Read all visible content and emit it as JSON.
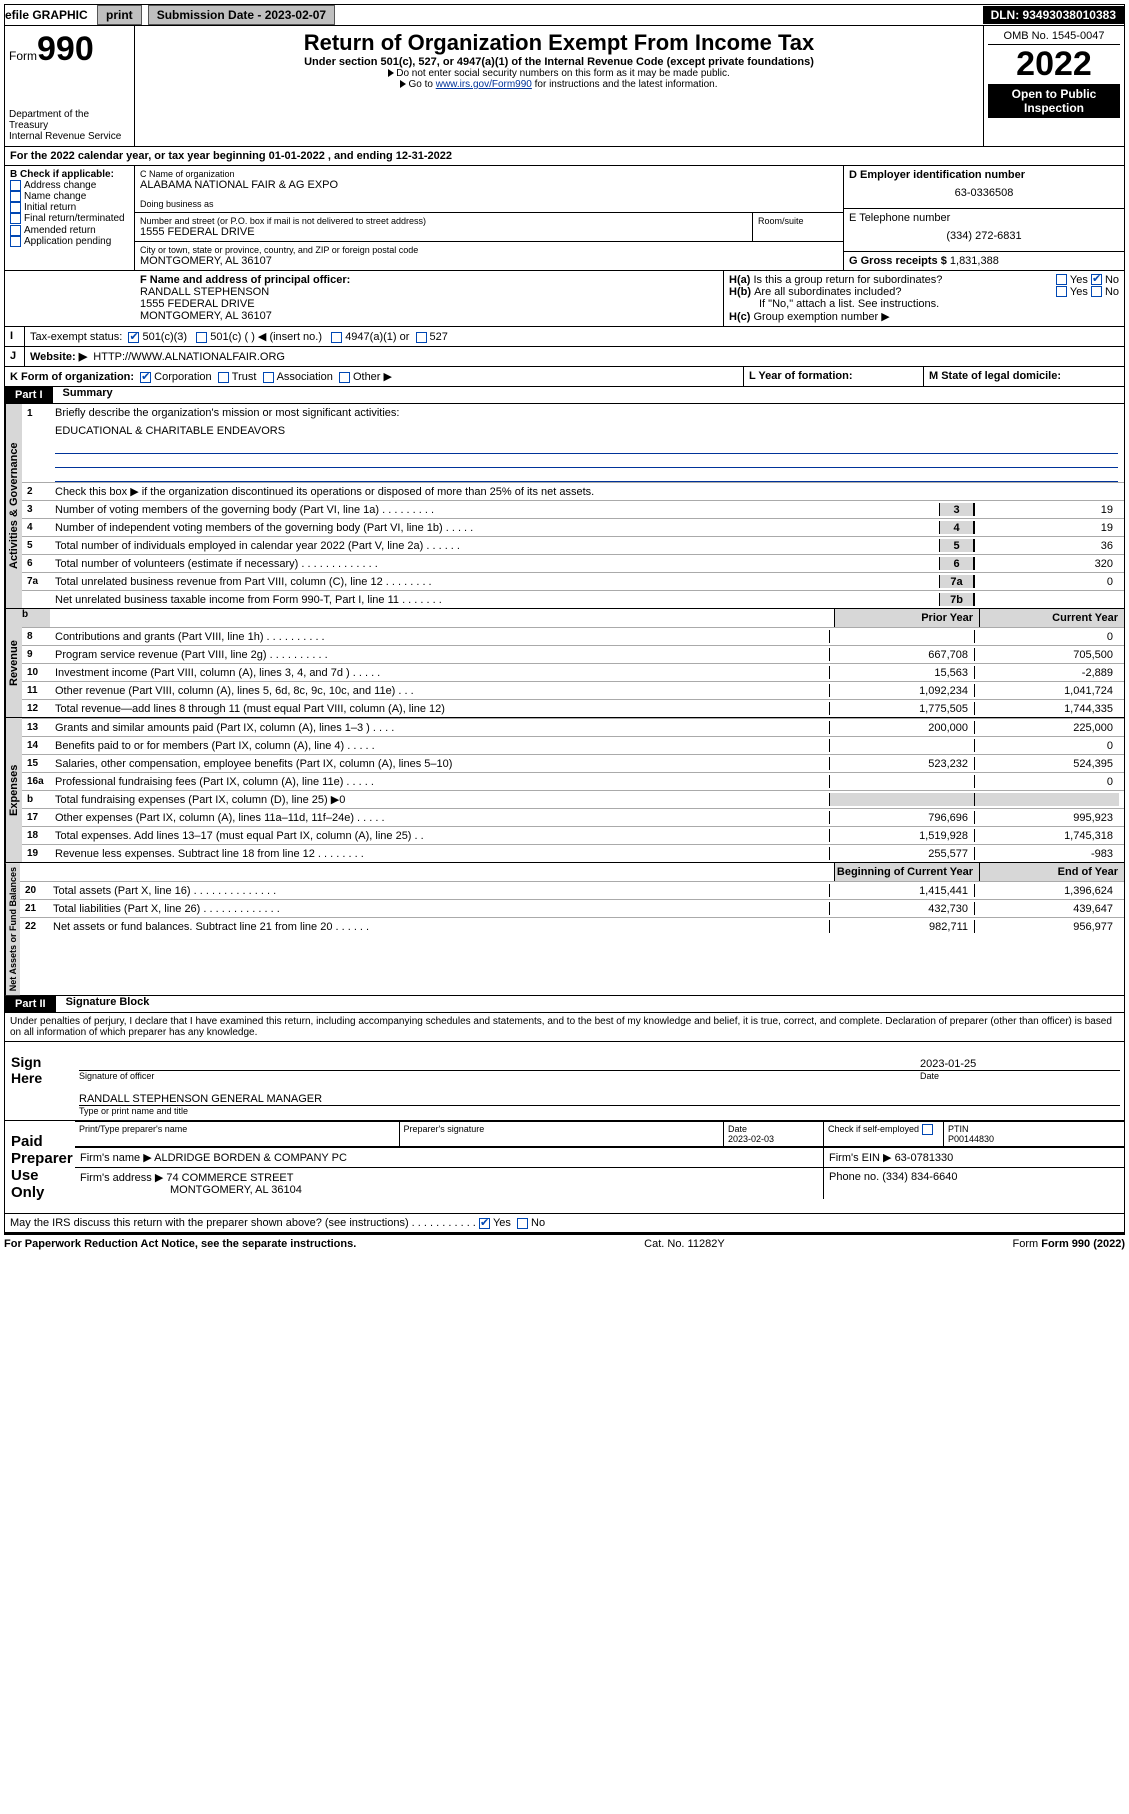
{
  "topbar": {
    "efile_label": "efile GRAPHIC ",
    "print_btn": "print",
    "sub_label": "Submission Date - 2023-02-07",
    "dln": "DLN: 93493038010383"
  },
  "header": {
    "form_prefix": "Form",
    "form_num": "990",
    "dept": "Department of the Treasury\nInternal Revenue Service",
    "title": "Return of Organization Exempt From Income Tax",
    "subtitle": "Under section 501(c), 527, or 4947(a)(1) of the Internal Revenue Code (except private foundations)",
    "note1": "Do not enter social security numbers on this form as it may be made public.",
    "note2_pre": "Go to ",
    "note2_link": "www.irs.gov/Form990",
    "note2_post": " for instructions and the latest information.",
    "omb": "OMB No. 1545-0047",
    "year": "2022",
    "otp": "Open to Public Inspection"
  },
  "period": {
    "line_a": "For the 2022 calendar year, or tax year beginning 01-01-2022    , and ending 12-31-2022"
  },
  "box_b": {
    "label": "B Check if applicable:",
    "items": [
      "Address change",
      "Name change",
      "Initial return",
      "Final return/terminated",
      "Amended return",
      "Application pending"
    ]
  },
  "box_c": {
    "name_label": "C Name of organization",
    "org_name": "ALABAMA NATIONAL FAIR & AG EXPO",
    "dba_label": "Doing business as",
    "street_label": "Number and street (or P.O. box if mail is not delivered to street address)",
    "room_label": "Room/suite",
    "street": "1555 FEDERAL DRIVE",
    "city_label": "City or town, state or province, country, and ZIP or foreign postal code",
    "city": "MONTGOMERY, AL  36107"
  },
  "box_d": {
    "label": "D Employer identification number",
    "value": "63-0336508"
  },
  "box_e": {
    "label": "E Telephone number",
    "value": "(334) 272-6831"
  },
  "box_g": {
    "label": "G Gross receipts $",
    "value": "1,831,388"
  },
  "box_f": {
    "label": "F  Name and address of principal officer:",
    "name": "RANDALL STEPHENSON",
    "street": "1555 FEDERAL DRIVE",
    "city": "MONTGOMERY, AL  36107"
  },
  "box_h": {
    "ha": "Is this a group return for subordinates?",
    "hb": "Are all subordinates included?",
    "hb_note": "If \"No,\" attach a list. See instructions.",
    "hc": "Group exemption number ▶",
    "yes": "Yes",
    "no": "No"
  },
  "box_i": {
    "label": "Tax-exempt status:",
    "o1": "501(c)(3)",
    "o2": "501(c) (   ) ◀ (insert no.)",
    "o3": "4947(a)(1) or",
    "o4": "527"
  },
  "box_j": {
    "label": "Website: ▶",
    "value": "HTTP://WWW.ALNATIONALFAIR.ORG"
  },
  "box_k": {
    "label": "K Form of organization:",
    "o1": "Corporation",
    "o2": "Trust",
    "o3": "Association",
    "o4": "Other ▶"
  },
  "box_l": {
    "label": "L Year of formation:"
  },
  "box_m": {
    "label": "M State of legal domicile:"
  },
  "part1": {
    "header": "Part I",
    "title": "Summary",
    "l1": "Briefly describe the organization's mission or most significant activities:",
    "l1_text": "EDUCATIONAL & CHARITABLE ENDEAVORS",
    "l2": "Check this box ▶       if the organization discontinued its operations or disposed of more than 25% of its net assets.",
    "section_act": "Activities & Governance",
    "section_rev": "Revenue",
    "section_exp": "Expenses",
    "section_net": "Net Assets or Fund Balances",
    "lines_single": [
      {
        "n": "3",
        "d": "Number of voting members of the governing body (Part VI, line 1a)  .   .   .   .   .   .   .   .   .",
        "b": "3",
        "v": "19"
      },
      {
        "n": "4",
        "d": "Number of independent voting members of the governing body (Part VI, line 1b)  .   .   .   .   .",
        "b": "4",
        "v": "19"
      },
      {
        "n": "5",
        "d": "Total number of individuals employed in calendar year 2022 (Part V, line 2a)  .   .   .   .   .   .",
        "b": "5",
        "v": "36"
      },
      {
        "n": "6",
        "d": "Total number of volunteers (estimate if necessary)  .   .   .   .   .   .   .   .   .   .   .   .   .",
        "b": "6",
        "v": "320"
      },
      {
        "n": "7a",
        "d": "Total unrelated business revenue from Part VIII, column (C), line 12  .   .   .   .   .   .   .   .",
        "b": "7a",
        "v": "0"
      },
      {
        "n": "",
        "d": "Net unrelated business taxable income from Form 990-T, Part I, line 11  .   .   .   .   .   .   .",
        "b": "7b",
        "v": ""
      }
    ],
    "col_prior": "Prior Year",
    "col_curr": "Current Year",
    "col_beg": "Beginning of Current Year",
    "col_end": "End of Year",
    "lines_rev": [
      {
        "n": "8",
        "d": "Contributions and grants (Part VIII, line 1h)   .   .   .   .   .   .   .   .   .   .",
        "p": "",
        "c": "0"
      },
      {
        "n": "9",
        "d": "Program service revenue (Part VIII, line 2g)   .   .   .   .   .   .   .   .   .   .",
        "p": "667,708",
        "c": "705,500"
      },
      {
        "n": "10",
        "d": "Investment income (Part VIII, column (A), lines 3, 4, and 7d )   .   .   .   .   .",
        "p": "15,563",
        "c": "-2,889"
      },
      {
        "n": "11",
        "d": "Other revenue (Part VIII, column (A), lines 5, 6d, 8c, 9c, 10c, and 11e)   .   .   .",
        "p": "1,092,234",
        "c": "1,041,724"
      },
      {
        "n": "12",
        "d": "Total revenue—add lines 8 through 11 (must equal Part VIII, column (A), line 12)",
        "p": "1,775,505",
        "c": "1,744,335"
      }
    ],
    "lines_exp": [
      {
        "n": "13",
        "d": "Grants and similar amounts paid (Part IX, column (A), lines 1–3 )   .   .   .   .",
        "p": "200,000",
        "c": "225,000"
      },
      {
        "n": "14",
        "d": "Benefits paid to or for members (Part IX, column (A), line 4)   .   .   .   .   .",
        "p": "",
        "c": "0"
      },
      {
        "n": "15",
        "d": "Salaries, other compensation, employee benefits (Part IX, column (A), lines 5–10)",
        "p": "523,232",
        "c": "524,395"
      },
      {
        "n": "16a",
        "d": "Professional fundraising fees (Part IX, column (A), line 11e)   .   .   .   .   .",
        "p": "",
        "c": "0"
      },
      {
        "n": "b",
        "d": "Total fundraising expenses (Part IX, column (D), line 25) ▶0",
        "p": "__shade__",
        "c": "__shade__"
      },
      {
        "n": "17",
        "d": "Other expenses (Part IX, column (A), lines 11a–11d, 11f–24e)   .   .   .   .   .",
        "p": "796,696",
        "c": "995,923"
      },
      {
        "n": "18",
        "d": "Total expenses. Add lines 13–17 (must equal Part IX, column (A), line 25)   .   .",
        "p": "1,519,928",
        "c": "1,745,318"
      },
      {
        "n": "19",
        "d": "Revenue less expenses. Subtract line 18 from line 12   .   .   .   .   .   .   .   .",
        "p": "255,577",
        "c": "-983"
      }
    ],
    "lines_net": [
      {
        "n": "20",
        "d": "Total assets (Part X, line 16)   .   .   .   .   .   .   .   .   .   .   .   .   .   .",
        "p": "1,415,441",
        "c": "1,396,624"
      },
      {
        "n": "21",
        "d": "Total liabilities (Part X, line 26)   .   .   .   .   .   .   .   .   .   .   .   .   .",
        "p": "432,730",
        "c": "439,647"
      },
      {
        "n": "22",
        "d": "Net assets or fund balances. Subtract line 21 from line 20   .   .   .   .   .   .",
        "p": "982,711",
        "c": "956,977"
      }
    ]
  },
  "part2": {
    "header": "Part II",
    "title": "Signature Block",
    "penalty": "Under penalties of perjury, I declare that I have examined this return, including accompanying schedules and statements, and to the best of my knowledge and belief, it is true, correct, and complete. Declaration of preparer (other than officer) is based on all information of which preparer has any knowledge.",
    "sign_here": "Sign Here",
    "sig_officer": "Signature of officer",
    "date": "Date",
    "sig_date": "2023-01-25",
    "name_title": "RANDALL STEPHENSON  GENERAL MANAGER",
    "name_title_label": "Type or print name and title",
    "paid": "Paid Preparer Use Only",
    "prep_name_label": "Print/Type preparer's name",
    "prep_sig_label": "Preparer's signature",
    "prep_date_label": "Date",
    "prep_date": "2023-02-03",
    "check_label": "Check         if self-employed",
    "ptin_label": "PTIN",
    "ptin": "P00144830",
    "firm_name_label": "Firm's name     ▶",
    "firm_name": "ALDRIDGE BORDEN & COMPANY PC",
    "firm_ein_label": "Firm's EIN ▶",
    "firm_ein": "63-0781330",
    "firm_addr_label": "Firm's address ▶",
    "firm_addr1": "74 COMMERCE STREET",
    "firm_addr2": "MONTGOMERY, AL  36104",
    "phone_label": "Phone no.",
    "phone": "(334) 834-6640",
    "discuss": "May the IRS discuss this return with the preparer shown above? (see instructions)   .   .   .   .   .   .   .   .   .   .   .",
    "yes": "Yes",
    "no": "No"
  },
  "footer": {
    "pra": "For Paperwork Reduction Act Notice, see the separate instructions.",
    "cat": "Cat. No. 11282Y",
    "form": "Form 990 (2022)"
  }
}
